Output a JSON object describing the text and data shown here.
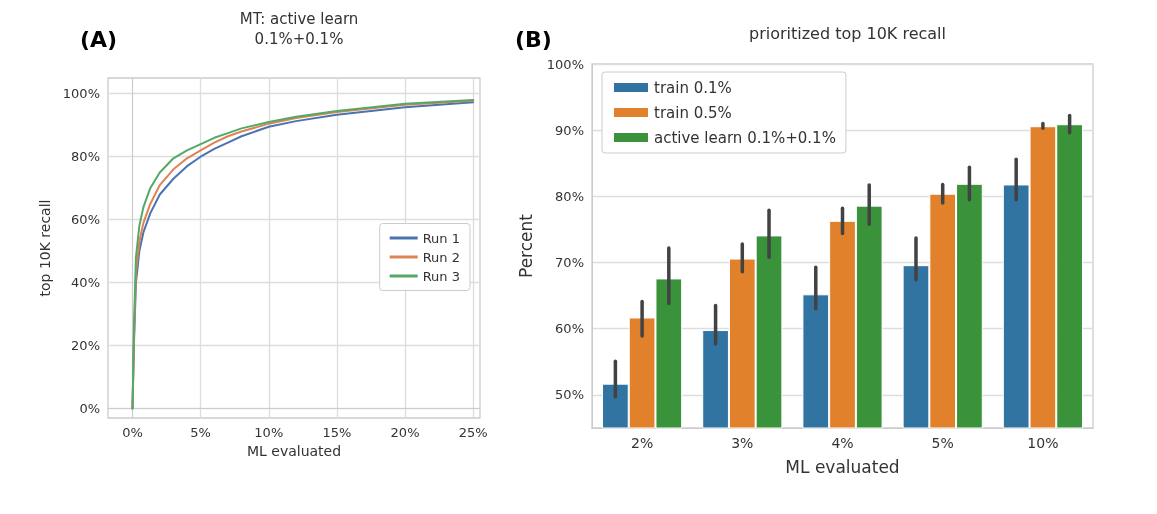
{
  "chart_data": [
    {
      "type": "line",
      "title": "MT: active learn\n0.1%+0.1%",
      "xlabel": "ML evaluated",
      "ylabel": "top 10K recall",
      "annotations": [
        "(A)"
      ],
      "xlim": [
        -1.8,
        25.5
      ],
      "xticks": [
        {
          "value": 0,
          "label": "0%"
        },
        {
          "value": 5,
          "label": "5%"
        },
        {
          "value": 10,
          "label": "10%"
        },
        {
          "value": 15,
          "label": "15%"
        },
        {
          "value": 20,
          "label": "20%"
        },
        {
          "value": 25,
          "label": "25%"
        }
      ],
      "ylim": [
        -3,
        105
      ],
      "yticks": [
        {
          "value": 0,
          "label": "0%"
        },
        {
          "value": 20,
          "label": "20%"
        },
        {
          "value": 40,
          "label": "40%"
        },
        {
          "value": 60,
          "label": "60%"
        },
        {
          "value": 80,
          "label": "80%"
        },
        {
          "value": 100,
          "label": "100%"
        }
      ],
      "grid": true,
      "legend": "right",
      "marker": "none",
      "line_style": "solid",
      "series": [
        {
          "name": "Run 1",
          "color": "#4c72b0",
          "x": [
            0,
            0.1,
            0.25,
            0.5,
            0.8,
            1.3,
            2,
            3,
            4,
            5,
            6,
            7,
            8,
            10,
            12,
            15,
            20,
            25
          ],
          "values": [
            0,
            20,
            40,
            50,
            56,
            62,
            68,
            73,
            77,
            80,
            82.5,
            84.5,
            86.5,
            89.5,
            91.3,
            93.3,
            95.7,
            97.3
          ]
        },
        {
          "name": "Run 2",
          "color": "#dd8452",
          "x": [
            0,
            0.1,
            0.25,
            0.5,
            0.8,
            1.3,
            2,
            3,
            4,
            5,
            6,
            7,
            8,
            10,
            12,
            15,
            20,
            25
          ],
          "values": [
            0,
            22,
            43,
            53,
            59,
            65,
            71,
            76,
            79.5,
            82,
            84.5,
            86.5,
            88,
            90.5,
            92.3,
            94.2,
            96.5,
            97.8
          ]
        },
        {
          "name": "Run 3",
          "color": "#55a868",
          "x": [
            0,
            0.1,
            0.25,
            0.5,
            0.8,
            1.3,
            2,
            3,
            4,
            5,
            6,
            7,
            8,
            10,
            12,
            15,
            20,
            25
          ],
          "values": [
            0,
            25,
            48,
            58,
            64,
            70,
            75,
            79.5,
            82,
            84,
            86,
            87.5,
            89,
            91,
            92.7,
            94.5,
            96.8,
            98
          ]
        }
      ]
    },
    {
      "type": "bar",
      "title": "prioritized top 10K recall",
      "xlabel": "ML evaluated",
      "ylabel": "Percent",
      "annotations": [
        "(B)"
      ],
      "categories": [
        "2%",
        "3%",
        "4%",
        "5%",
        "10%"
      ],
      "ylim": [
        45,
        100
      ],
      "yticks": [
        {
          "value": 50,
          "label": "50%"
        },
        {
          "value": 60,
          "label": "60%"
        },
        {
          "value": 70,
          "label": "70%"
        },
        {
          "value": 80,
          "label": "80%"
        },
        {
          "value": 90,
          "label": "90%"
        },
        {
          "value": 100,
          "label": "100%"
        }
      ],
      "grid": "y",
      "legend": "top left",
      "series": [
        {
          "name": "train 0.1%",
          "color": "#3274a1",
          "values": [
            51.7,
            59.8,
            65.2,
            69.6,
            81.8
          ],
          "errors": [
            [
              49.7,
              55.1
            ],
            [
              57.7,
              63.5
            ],
            [
              63.0,
              69.3
            ],
            [
              67.4,
              73.7
            ],
            [
              79.5,
              85.6
            ]
          ]
        },
        {
          "name": "train 0.5%",
          "color": "#e1812c",
          "values": [
            61.7,
            70.6,
            76.3,
            80.4,
            90.6
          ],
          "errors": [
            [
              58.9,
              64.1
            ],
            [
              68.6,
              72.8
            ],
            [
              74.4,
              78.2
            ],
            [
              79.0,
              81.8
            ],
            [
              90.3,
              91.0
            ]
          ]
        },
        {
          "name": "active learn 0.1%+0.1%",
          "color": "#3a923a",
          "values": [
            67.6,
            74.1,
            78.6,
            81.9,
            90.9
          ],
          "errors": [
            [
              63.8,
              72.2
            ],
            [
              70.8,
              77.9
            ],
            [
              75.8,
              81.7
            ],
            [
              79.5,
              84.4
            ],
            [
              89.6,
              92.2
            ]
          ]
        }
      ]
    }
  ]
}
